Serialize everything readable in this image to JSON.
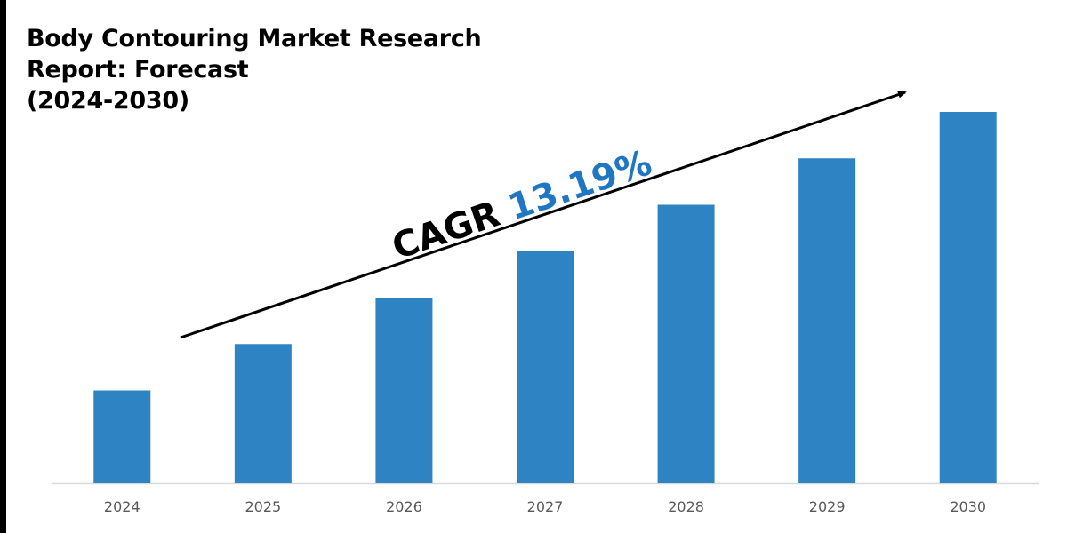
{
  "chart_data": {
    "type": "bar",
    "title": "Body Contouring Market Research Report: Forecast (2024-2030)",
    "title_lines": [
      "Body Contouring Market Research",
      "Report: Forecast",
      "(2024-2030)"
    ],
    "categories": [
      "2024",
      "2025",
      "2026",
      "2027",
      "2028",
      "2029",
      "2030"
    ],
    "values": [
      1.0,
      1.5,
      2.0,
      2.5,
      3.0,
      3.5,
      4.0
    ],
    "xlabel": "",
    "ylabel": "",
    "ylim": [
      0,
      4.2
    ],
    "grid": false,
    "annotation": {
      "prefix": "CAGR",
      "value": "13.19%"
    },
    "colors": {
      "bar": "#2e83c3",
      "cagr_value": "#1f77c4",
      "axis": "#d9d9d9"
    }
  }
}
